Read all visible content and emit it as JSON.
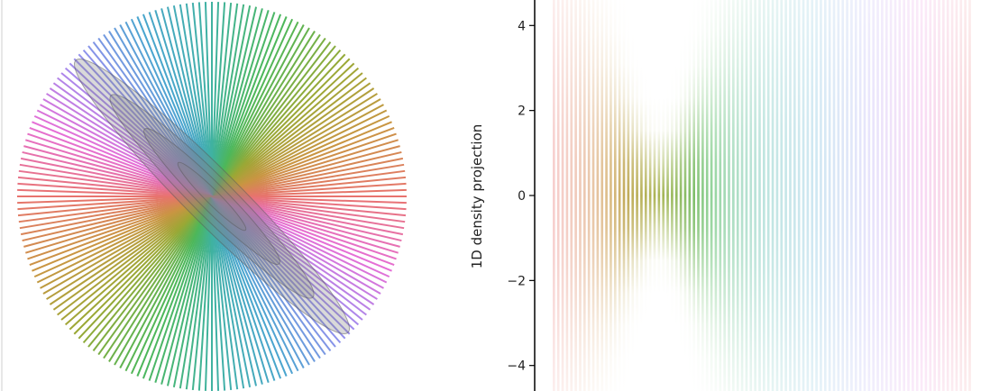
{
  "chart_data": [
    {
      "type": "line",
      "description_panel": "left",
      "title": "",
      "xlabel": "",
      "ylabel": "",
      "projection_lines": {
        "count": 96,
        "angle_range_deg": [
          0,
          180
        ],
        "radius": 4.5
      },
      "ellipses": {
        "center": [
          0,
          0
        ],
        "orientation_deg": -45,
        "major_semi_axes": [
          4.45,
          3.3,
          2.2,
          1.1
        ],
        "minor_semi_axes": [
          0.62,
          0.46,
          0.31,
          0.16
        ],
        "fill": "#808080",
        "fill_opacity": 0.3
      },
      "colormap": "husl",
      "colors": [
        "#e8736e",
        "#c99542",
        "#9aa835",
        "#4db75a",
        "#3fb2a0",
        "#4aa5cf",
        "#9b8ef0",
        "#e56fd6"
      ]
    },
    {
      "type": "heatmap",
      "title": "",
      "xlabel": "",
      "ylabel": "1D density projection",
      "yticks": [
        4,
        2,
        0,
        -2,
        -4
      ],
      "yticklabels": [
        "4",
        "2",
        "0",
        "−2",
        "−4"
      ],
      "ylim": [
        -4.6,
        4.6
      ],
      "columns": 96,
      "stddev_along_projection": {
        "min": 0.62,
        "max": 4.45,
        "min_at_angle_deg": 45
      },
      "colormap": "husl",
      "colors": [
        "#e8736e",
        "#c99542",
        "#9aa835",
        "#4db75a",
        "#3fb2a0",
        "#4aa5cf",
        "#9b8ef0",
        "#e56fd6"
      ]
    }
  ]
}
